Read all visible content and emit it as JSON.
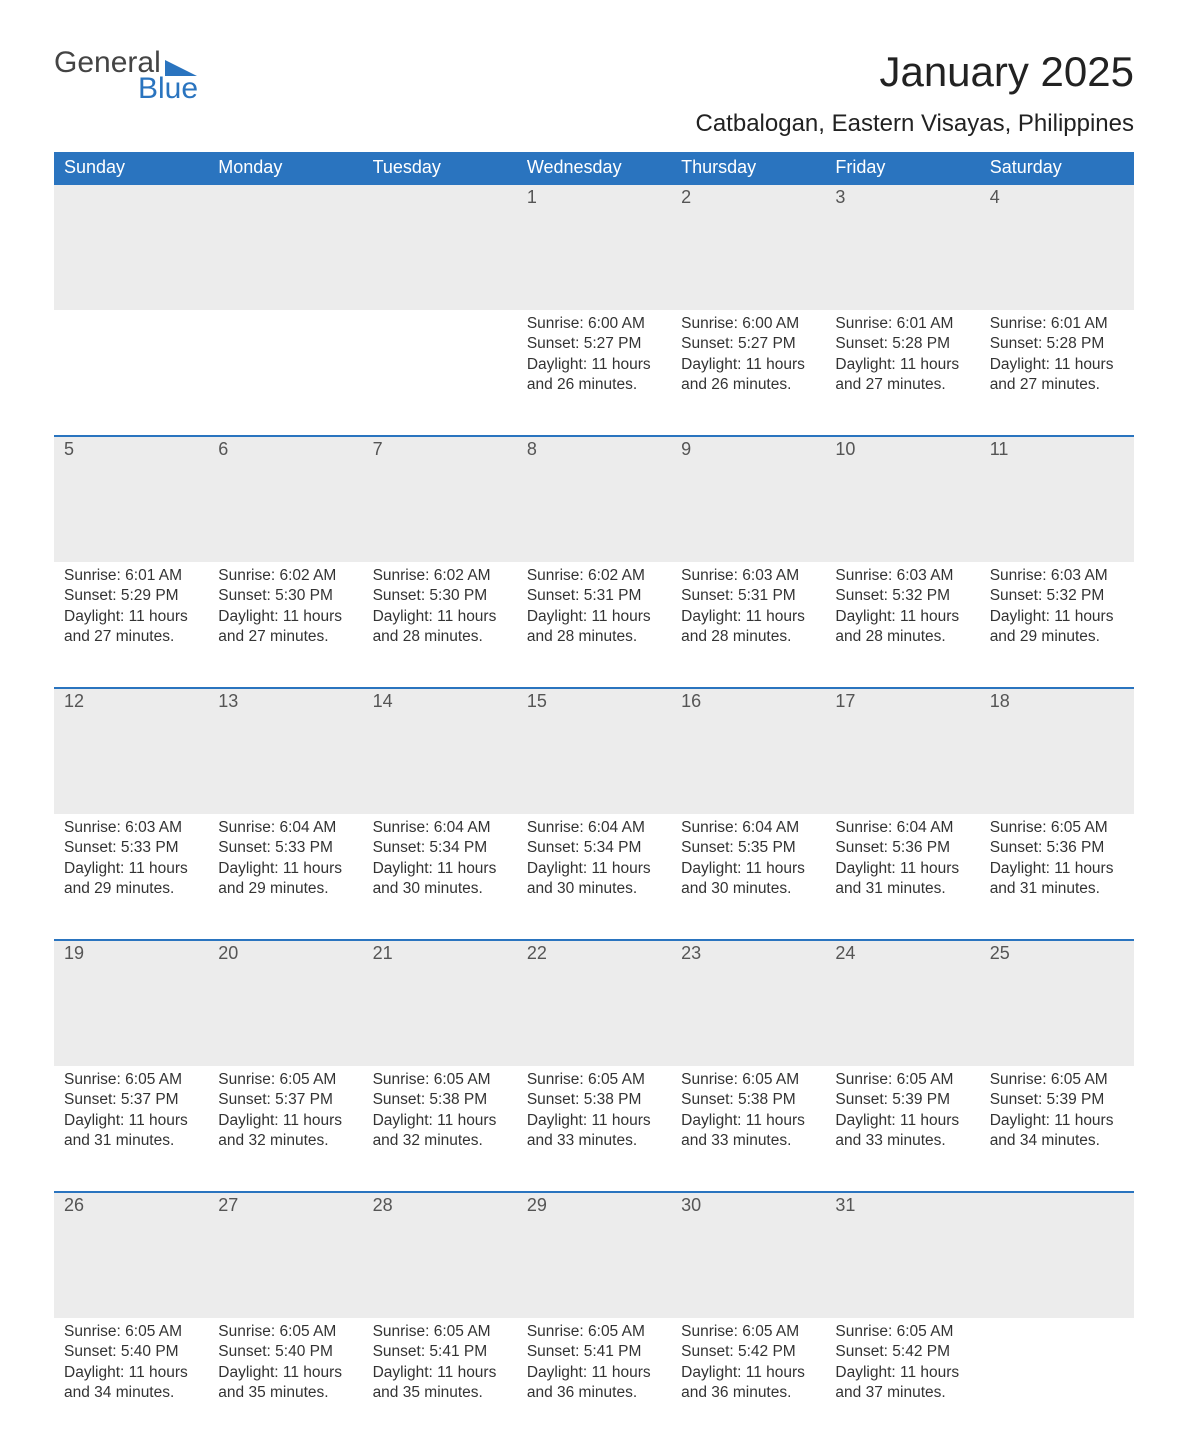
{
  "logo": {
    "text1": "General",
    "text2": "Blue"
  },
  "title": "January 2025",
  "location": "Catbalogan, Eastern Visayas, Philippines",
  "colors": {
    "header_bg": "#2a74bf",
    "header_text": "#ffffff",
    "daynum_bg": "#ececec",
    "row_border": "#2a74bf",
    "body_text": "#333333",
    "logo_gray": "#444444",
    "logo_blue": "#2a74bf"
  },
  "typography": {
    "title_fontsize": 42,
    "location_fontsize": 24,
    "header_fontsize": 18,
    "daynum_fontsize": 18,
    "body_fontsize": 15.5
  },
  "weekdays": [
    "Sunday",
    "Monday",
    "Tuesday",
    "Wednesday",
    "Thursday",
    "Friday",
    "Saturday"
  ],
  "weeks": [
    [
      null,
      null,
      null,
      {
        "n": "1",
        "sunrise": "6:00 AM",
        "sunset": "5:27 PM",
        "dl": "11 hours and 26 minutes."
      },
      {
        "n": "2",
        "sunrise": "6:00 AM",
        "sunset": "5:27 PM",
        "dl": "11 hours and 26 minutes."
      },
      {
        "n": "3",
        "sunrise": "6:01 AM",
        "sunset": "5:28 PM",
        "dl": "11 hours and 27 minutes."
      },
      {
        "n": "4",
        "sunrise": "6:01 AM",
        "sunset": "5:28 PM",
        "dl": "11 hours and 27 minutes."
      }
    ],
    [
      {
        "n": "5",
        "sunrise": "6:01 AM",
        "sunset": "5:29 PM",
        "dl": "11 hours and 27 minutes."
      },
      {
        "n": "6",
        "sunrise": "6:02 AM",
        "sunset": "5:30 PM",
        "dl": "11 hours and 27 minutes."
      },
      {
        "n": "7",
        "sunrise": "6:02 AM",
        "sunset": "5:30 PM",
        "dl": "11 hours and 28 minutes."
      },
      {
        "n": "8",
        "sunrise": "6:02 AM",
        "sunset": "5:31 PM",
        "dl": "11 hours and 28 minutes."
      },
      {
        "n": "9",
        "sunrise": "6:03 AM",
        "sunset": "5:31 PM",
        "dl": "11 hours and 28 minutes."
      },
      {
        "n": "10",
        "sunrise": "6:03 AM",
        "sunset": "5:32 PM",
        "dl": "11 hours and 28 minutes."
      },
      {
        "n": "11",
        "sunrise": "6:03 AM",
        "sunset": "5:32 PM",
        "dl": "11 hours and 29 minutes."
      }
    ],
    [
      {
        "n": "12",
        "sunrise": "6:03 AM",
        "sunset": "5:33 PM",
        "dl": "11 hours and 29 minutes."
      },
      {
        "n": "13",
        "sunrise": "6:04 AM",
        "sunset": "5:33 PM",
        "dl": "11 hours and 29 minutes."
      },
      {
        "n": "14",
        "sunrise": "6:04 AM",
        "sunset": "5:34 PM",
        "dl": "11 hours and 30 minutes."
      },
      {
        "n": "15",
        "sunrise": "6:04 AM",
        "sunset": "5:34 PM",
        "dl": "11 hours and 30 minutes."
      },
      {
        "n": "16",
        "sunrise": "6:04 AM",
        "sunset": "5:35 PM",
        "dl": "11 hours and 30 minutes."
      },
      {
        "n": "17",
        "sunrise": "6:04 AM",
        "sunset": "5:36 PM",
        "dl": "11 hours and 31 minutes."
      },
      {
        "n": "18",
        "sunrise": "6:05 AM",
        "sunset": "5:36 PM",
        "dl": "11 hours and 31 minutes."
      }
    ],
    [
      {
        "n": "19",
        "sunrise": "6:05 AM",
        "sunset": "5:37 PM",
        "dl": "11 hours and 31 minutes."
      },
      {
        "n": "20",
        "sunrise": "6:05 AM",
        "sunset": "5:37 PM",
        "dl": "11 hours and 32 minutes."
      },
      {
        "n": "21",
        "sunrise": "6:05 AM",
        "sunset": "5:38 PM",
        "dl": "11 hours and 32 minutes."
      },
      {
        "n": "22",
        "sunrise": "6:05 AM",
        "sunset": "5:38 PM",
        "dl": "11 hours and 33 minutes."
      },
      {
        "n": "23",
        "sunrise": "6:05 AM",
        "sunset": "5:38 PM",
        "dl": "11 hours and 33 minutes."
      },
      {
        "n": "24",
        "sunrise": "6:05 AM",
        "sunset": "5:39 PM",
        "dl": "11 hours and 33 minutes."
      },
      {
        "n": "25",
        "sunrise": "6:05 AM",
        "sunset": "5:39 PM",
        "dl": "11 hours and 34 minutes."
      }
    ],
    [
      {
        "n": "26",
        "sunrise": "6:05 AM",
        "sunset": "5:40 PM",
        "dl": "11 hours and 34 minutes."
      },
      {
        "n": "27",
        "sunrise": "6:05 AM",
        "sunset": "5:40 PM",
        "dl": "11 hours and 35 minutes."
      },
      {
        "n": "28",
        "sunrise": "6:05 AM",
        "sunset": "5:41 PM",
        "dl": "11 hours and 35 minutes."
      },
      {
        "n": "29",
        "sunrise": "6:05 AM",
        "sunset": "5:41 PM",
        "dl": "11 hours and 36 minutes."
      },
      {
        "n": "30",
        "sunrise": "6:05 AM",
        "sunset": "5:42 PM",
        "dl": "11 hours and 36 minutes."
      },
      {
        "n": "31",
        "sunrise": "6:05 AM",
        "sunset": "5:42 PM",
        "dl": "11 hours and 37 minutes."
      },
      null
    ]
  ],
  "labels": {
    "sunrise": "Sunrise:",
    "sunset": "Sunset:",
    "daylight": "Daylight:"
  }
}
